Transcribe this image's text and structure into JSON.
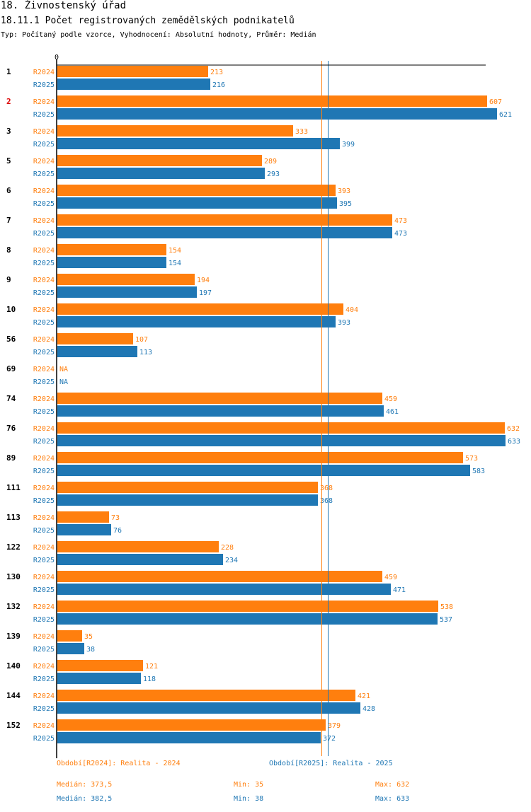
{
  "header": {
    "title": "18. Živnostenský úřad",
    "subtitle": "18.11.1 Počet registrovaných zemědělských podnikatelů",
    "type_line": "Typ: Počítaný podle vzorce, Vyhodnocení: Absolutní hodnoty, Průměr: Medián"
  },
  "colors": {
    "r2024": "#ff7f0e",
    "r2025": "#1f77b4",
    "highlight": "#dd0000"
  },
  "chart_data": {
    "type": "bar",
    "orientation": "horizontal",
    "x_axis_label": "0",
    "xlim": [
      0,
      633
    ],
    "highlight_category": "2",
    "na_label": "NA",
    "categories": [
      "1",
      "2",
      "3",
      "5",
      "6",
      "7",
      "8",
      "9",
      "10",
      "56",
      "69",
      "74",
      "76",
      "89",
      "111",
      "113",
      "122",
      "130",
      "132",
      "139",
      "140",
      "144",
      "152"
    ],
    "series": [
      {
        "name": "R2024",
        "values": [
          213,
          607,
          333,
          289,
          393,
          473,
          154,
          194,
          404,
          107,
          null,
          459,
          632,
          573,
          368,
          73,
          228,
          459,
          538,
          35,
          121,
          421,
          379
        ]
      },
      {
        "name": "R2025",
        "values": [
          216,
          621,
          399,
          293,
          395,
          473,
          154,
          197,
          393,
          113,
          null,
          461,
          633,
          583,
          368,
          76,
          234,
          471,
          537,
          38,
          118,
          428,
          372
        ]
      }
    ],
    "reference_lines": [
      {
        "series": "R2024",
        "type": "median",
        "value": 373.5
      },
      {
        "series": "R2025",
        "type": "median",
        "value": 382.5
      }
    ]
  },
  "legend": {
    "r2024_period": "Období[R2024]: Realita - 2024",
    "r2025_period": "Období[R2025]: Realita - 2025",
    "r2024_median": "Medián: 373,5",
    "r2024_min": "Min: 35",
    "r2024_max": "Max: 632",
    "r2025_median": "Medián: 382,5",
    "r2025_min": "Min: 38",
    "r2025_max": "Max: 633"
  }
}
